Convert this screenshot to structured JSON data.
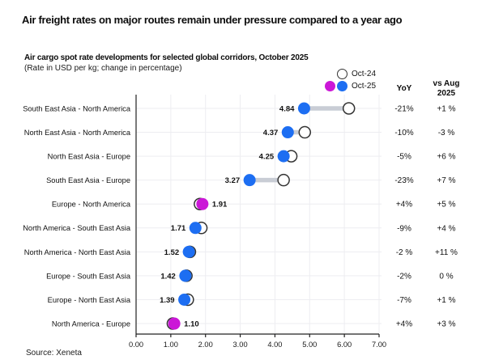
{
  "header": {
    "title": "Air freight rates on major routes remain under pressure compared to a year ago"
  },
  "chart_header": {
    "subtitle": "Air cargo spot rate developments for selected global corridors, October 2025",
    "note": "(Rate in USD per kg; change in percentage)"
  },
  "legend": {
    "oct24_label": "Oct-24",
    "oct25_label": "Oct-25"
  },
  "columns": {
    "yoy": "YoY",
    "vs_aug_line1": "vs Aug",
    "vs_aug_line2": "2025"
  },
  "source": "Source: Xeneta",
  "colors": {
    "blue": "#1d6ef2",
    "magenta": "#cb17d7",
    "open_fill": "#ffffff",
    "open_stroke": "#333333",
    "connector": "#c9cdd5",
    "grid": "#ededf1",
    "axis": "#222222",
    "text": "#111111"
  },
  "chart_data": {
    "type": "dumbbell",
    "title": "Air cargo spot rate developments for selected global corridors, October 2025",
    "xlabel": "Rate in USD per kg",
    "ylabel": "",
    "xlim": [
      0,
      7
    ],
    "x_ticks": [
      "0.00",
      "1.00",
      "2.00",
      "3.00",
      "4.00",
      "5.00",
      "6.00",
      "7.00"
    ],
    "grid": true,
    "legend_position": "top-right",
    "categories": [
      "South East Asia - North America",
      "North East Asia - North America",
      "North East Asia - Europe",
      "South East Asia - Europe",
      "Europe - North America",
      "North America - South East Asia",
      "North America - North East Asia",
      "Europe - South East Asia",
      "Europe - North East Asia",
      "North America - Europe"
    ],
    "series": [
      {
        "name": "Oct-24",
        "marker": "open-circle",
        "values": [
          6.13,
          4.86,
          4.47,
          4.25,
          1.84,
          1.88,
          1.55,
          1.45,
          1.49,
          1.06
        ]
      },
      {
        "name": "Oct-25",
        "marker": "filled-circle",
        "values": [
          4.84,
          4.37,
          4.25,
          3.27,
          1.91,
          1.71,
          1.52,
          1.42,
          1.39,
          1.1
        ],
        "point_colors": [
          "blue",
          "blue",
          "blue",
          "blue",
          "magenta",
          "blue",
          "blue",
          "blue",
          "blue",
          "magenta"
        ]
      }
    ],
    "value_labels": [
      "4.84",
      "4.37",
      "4.25",
      "3.27",
      "1.91",
      "1.71",
      "1.52",
      "1.42",
      "1.39",
      "1.10"
    ],
    "yoy_values": [
      "-21%",
      "-10%",
      "-5%",
      "-23%",
      "+4%",
      "-9%",
      "-2 %",
      "-2%",
      "-7%",
      "+4%"
    ],
    "vs_aug_values": [
      "+1 %",
      "-3 %",
      "+6 %",
      "+7 %",
      "+5 %",
      "+4 %",
      "+11 %",
      "0 %",
      "+1 %",
      "+3 %"
    ]
  }
}
